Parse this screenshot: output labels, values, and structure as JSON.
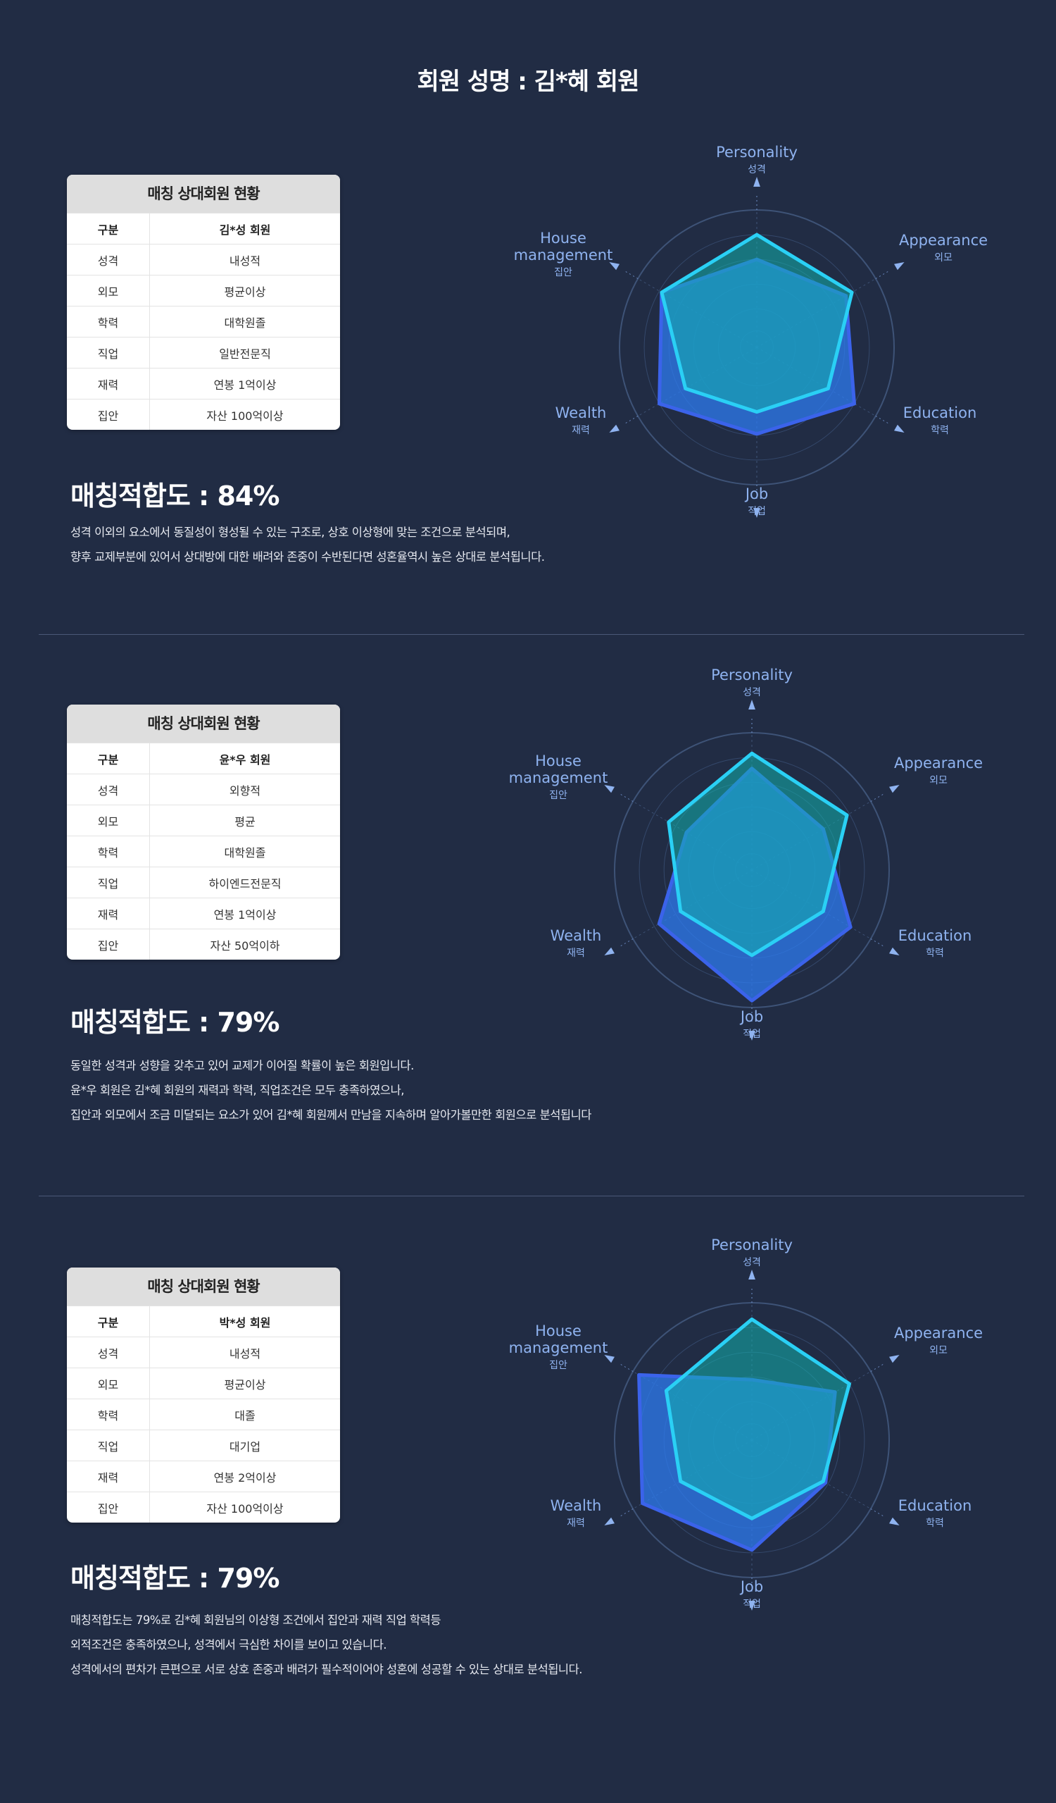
{
  "page_title": "회원 성명 : 김*혜 회원",
  "axes": [
    {
      "en": "Personality",
      "ko": "성격"
    },
    {
      "en": "Appearance",
      "ko": "외모"
    },
    {
      "en": "Education",
      "ko": "학력"
    },
    {
      "en": "Job",
      "ko": "직업"
    },
    {
      "en": "Wealth",
      "ko": "재력"
    },
    {
      "en": "House management",
      "ko": "집안"
    }
  ],
  "colors": {
    "background": "#212c44",
    "self_series": "#2ad0f5",
    "partner_series": "#3b63ea",
    "axis_label": "#8fb3f0"
  },
  "matches": [
    {
      "card_title": "매칭 상대회원 현황",
      "header": {
        "key": "구분",
        "value": "김*성 회원"
      },
      "rows": [
        {
          "key": "성격",
          "value": "내성적"
        },
        {
          "key": "외모",
          "value": "평균이상"
        },
        {
          "key": "학력",
          "value": "대학원졸"
        },
        {
          "key": "직업",
          "value": "일반전문직"
        },
        {
          "key": "재력",
          "value": "연봉 1억이상"
        },
        {
          "key": "집안",
          "value": "자산 100억이상"
        }
      ],
      "score": "매칭적합도 : 84%",
      "description": [
        "성격 이외의 요소에서 동질성이 형성될 수 있는 구조로, 상호 이상형에 맞는 조건으로 분석되며,",
        "향후 교제부분에 있어서 상대방에 대한 배려와 존중이 수반된다면 성혼율역시 높은 상대로 분석됩니다."
      ],
      "chart_data": {
        "type": "radar",
        "categories": [
          "Personality",
          "Appearance",
          "Education",
          "Job",
          "Wealth",
          "House management"
        ],
        "series": [
          {
            "values": [
              0.82,
              0.8,
              0.6,
              0.47,
              0.6,
              0.8
            ]
          },
          {
            "values": [
              0.64,
              0.75,
              0.82,
              0.63,
              0.82,
              0.8
            ]
          }
        ],
        "ylim": [
          0,
          1
        ]
      }
    },
    {
      "card_title": "매칭 상대회원 현황",
      "header": {
        "key": "구분",
        "value": "윤*우 회원"
      },
      "rows": [
        {
          "key": "성격",
          "value": "외향적"
        },
        {
          "key": "외모",
          "value": "평균"
        },
        {
          "key": "학력",
          "value": "대학원졸"
        },
        {
          "key": "직업",
          "value": "하이엔드전문직"
        },
        {
          "key": "재력",
          "value": "연봉 1억이상"
        },
        {
          "key": "집안",
          "value": "자산 50억이하"
        }
      ],
      "score": "매칭적합도 : 79%",
      "description": [
        "동일한 성격과 성향을 갖추고 있어 교제가 이어질 확률이 높은 회원입니다.",
        "윤*우 회원은 김*혜 회원의 재력과 학력, 직업조건은 모두 충족하였으나,",
        "집안과 외모에서 조금 미달되는 요소가 있어 김*혜 회원께서 만남을 지속하며 알아가볼만한 회원으로 분석됩니다"
      ],
      "chart_data": {
        "type": "radar",
        "categories": [
          "Personality",
          "Appearance",
          "Education",
          "Job",
          "Wealth",
          "House management"
        ],
        "series": [
          {
            "values": [
              0.85,
              0.8,
              0.6,
              0.62,
              0.6,
              0.7
            ]
          },
          {
            "values": [
              0.74,
              0.6,
              0.83,
              0.95,
              0.78,
              0.55
            ]
          }
        ],
        "ylim": [
          0,
          1
        ]
      }
    },
    {
      "card_title": "매칭 상대회원 현황",
      "header": {
        "key": "구분",
        "value": "박*성 회원"
      },
      "rows": [
        {
          "key": "성격",
          "value": "내성적"
        },
        {
          "key": "외모",
          "value": "평균이상"
        },
        {
          "key": "학력",
          "value": "대졸"
        },
        {
          "key": "직업",
          "value": "대기업"
        },
        {
          "key": "재력",
          "value": "연봉 2억이상"
        },
        {
          "key": "집안",
          "value": "자산 100억이상"
        }
      ],
      "score": "매칭적합도 : 79%",
      "description": [
        "매칭적합도는 79%로 김*혜 회원님의 이상형 조건에서 집안과 재력 직업 학력등",
        "외적조건은 충족하였으나, 성격에서 극심한 차이를 보이고 있습니다.",
        "성격에서의 편차가 큰편으로 서로 상호 존중과 배려가 필수적이어야 성혼에 성공할 수 있는 상대로 분석됩니다."
      ],
      "chart_data": {
        "type": "radar",
        "categories": [
          "Personality",
          "Appearance",
          "Education",
          "Job",
          "Wealth",
          "House management"
        ],
        "series": [
          {
            "values": [
              0.88,
              0.82,
              0.6,
              0.57,
              0.6,
              0.72
            ]
          },
          {
            "values": [
              0.44,
              0.7,
              0.62,
              0.8,
              0.92,
              0.95
            ]
          }
        ],
        "ylim": [
          0,
          1
        ]
      }
    }
  ]
}
